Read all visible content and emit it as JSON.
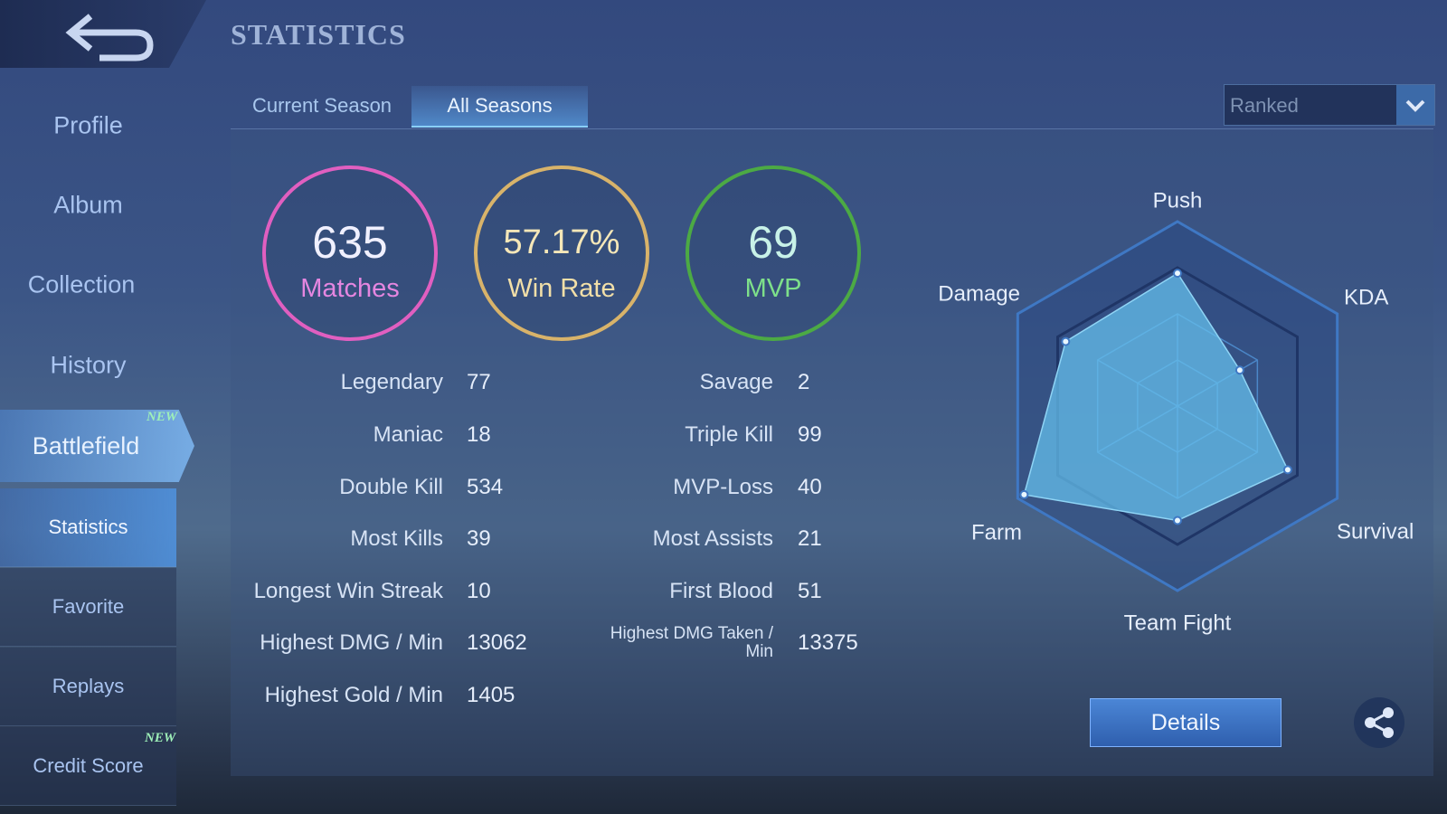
{
  "header": {
    "title": "STATISTICS"
  },
  "sidebar": {
    "items": [
      "Profile",
      "Album",
      "Collection",
      "History",
      "Battlefield",
      "Statistics",
      "Favorite",
      "Replays",
      "Credit Score"
    ],
    "badge": "NEW"
  },
  "tabs": [
    "Current Season",
    "All Seasons"
  ],
  "active_tab": 1,
  "mode_select": "Ranked",
  "summary": [
    {
      "value": "635",
      "label": "Matches"
    },
    {
      "value": "57.17%",
      "label": "Win Rate"
    },
    {
      "value": "69",
      "label": "MVP"
    }
  ],
  "stats": {
    "left": [
      [
        "Legendary",
        "77"
      ],
      [
        "Maniac",
        "18"
      ],
      [
        "Double Kill",
        "534"
      ],
      [
        "Most Kills",
        "39"
      ],
      [
        "Longest Win Streak",
        "10"
      ],
      [
        "Highest DMG / Min",
        "13062"
      ],
      [
        "Highest Gold / Min",
        "1405"
      ]
    ],
    "right": [
      [
        "Savage",
        "2"
      ],
      [
        "Triple Kill",
        "99"
      ],
      [
        "MVP-Loss",
        "40"
      ],
      [
        "Most Assists",
        "21"
      ],
      [
        "First Blood",
        "51"
      ],
      [
        "Highest DMG Taken / Min",
        "13375"
      ]
    ]
  },
  "radar": {
    "type": "radar",
    "axes": [
      "Push",
      "KDA",
      "Survival",
      "Team Fight",
      "Farm",
      "Damage"
    ],
    "values": [
      72,
      39,
      69,
      62,
      96,
      70
    ],
    "rlim": [
      0,
      100
    ]
  },
  "details_button": "Details"
}
